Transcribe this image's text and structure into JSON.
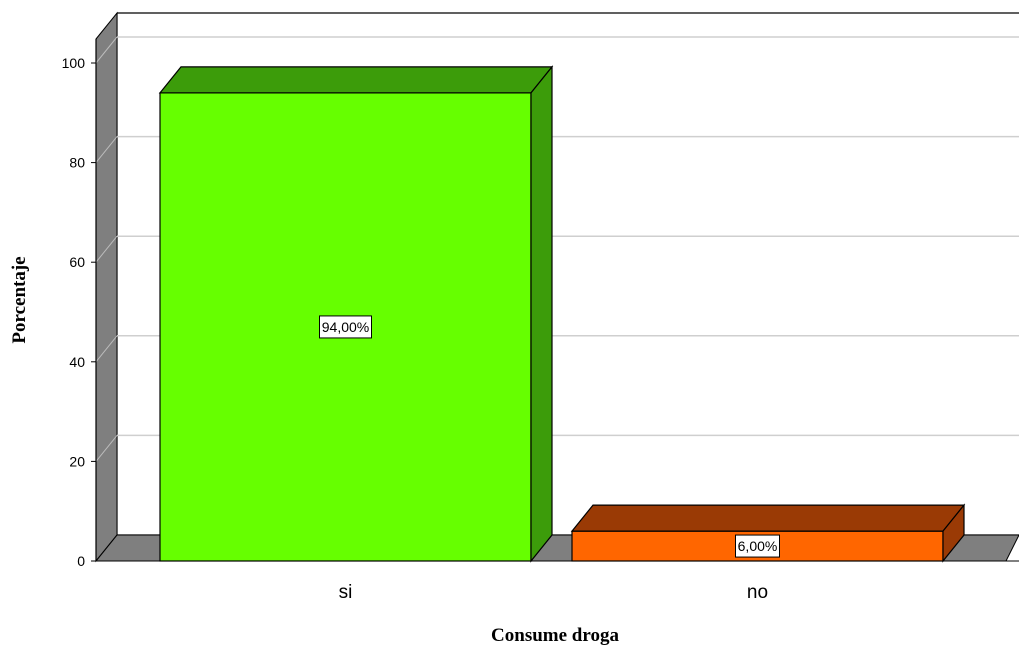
{
  "chart_data": {
    "type": "bar",
    "categories": [
      "si",
      "no"
    ],
    "values": [
      94,
      6
    ],
    "data_labels": [
      "94,00%",
      "6,00%"
    ],
    "xlabel": "Consume droga",
    "ylabel": "Porcentaje",
    "ylim": [
      0,
      100
    ],
    "yticks": [
      0,
      20,
      40,
      60,
      80,
      100
    ],
    "grid": true,
    "style": "3d",
    "colors": {
      "si": {
        "front": "#66ff00",
        "top": "#3c9c0a",
        "side": "#3c9c0a"
      },
      "no": {
        "front": "#ff6600",
        "top": "#9a3a05",
        "side": "#9a3a05"
      },
      "wall": "#7f7f7f",
      "grid": "#cfcfcf"
    }
  }
}
